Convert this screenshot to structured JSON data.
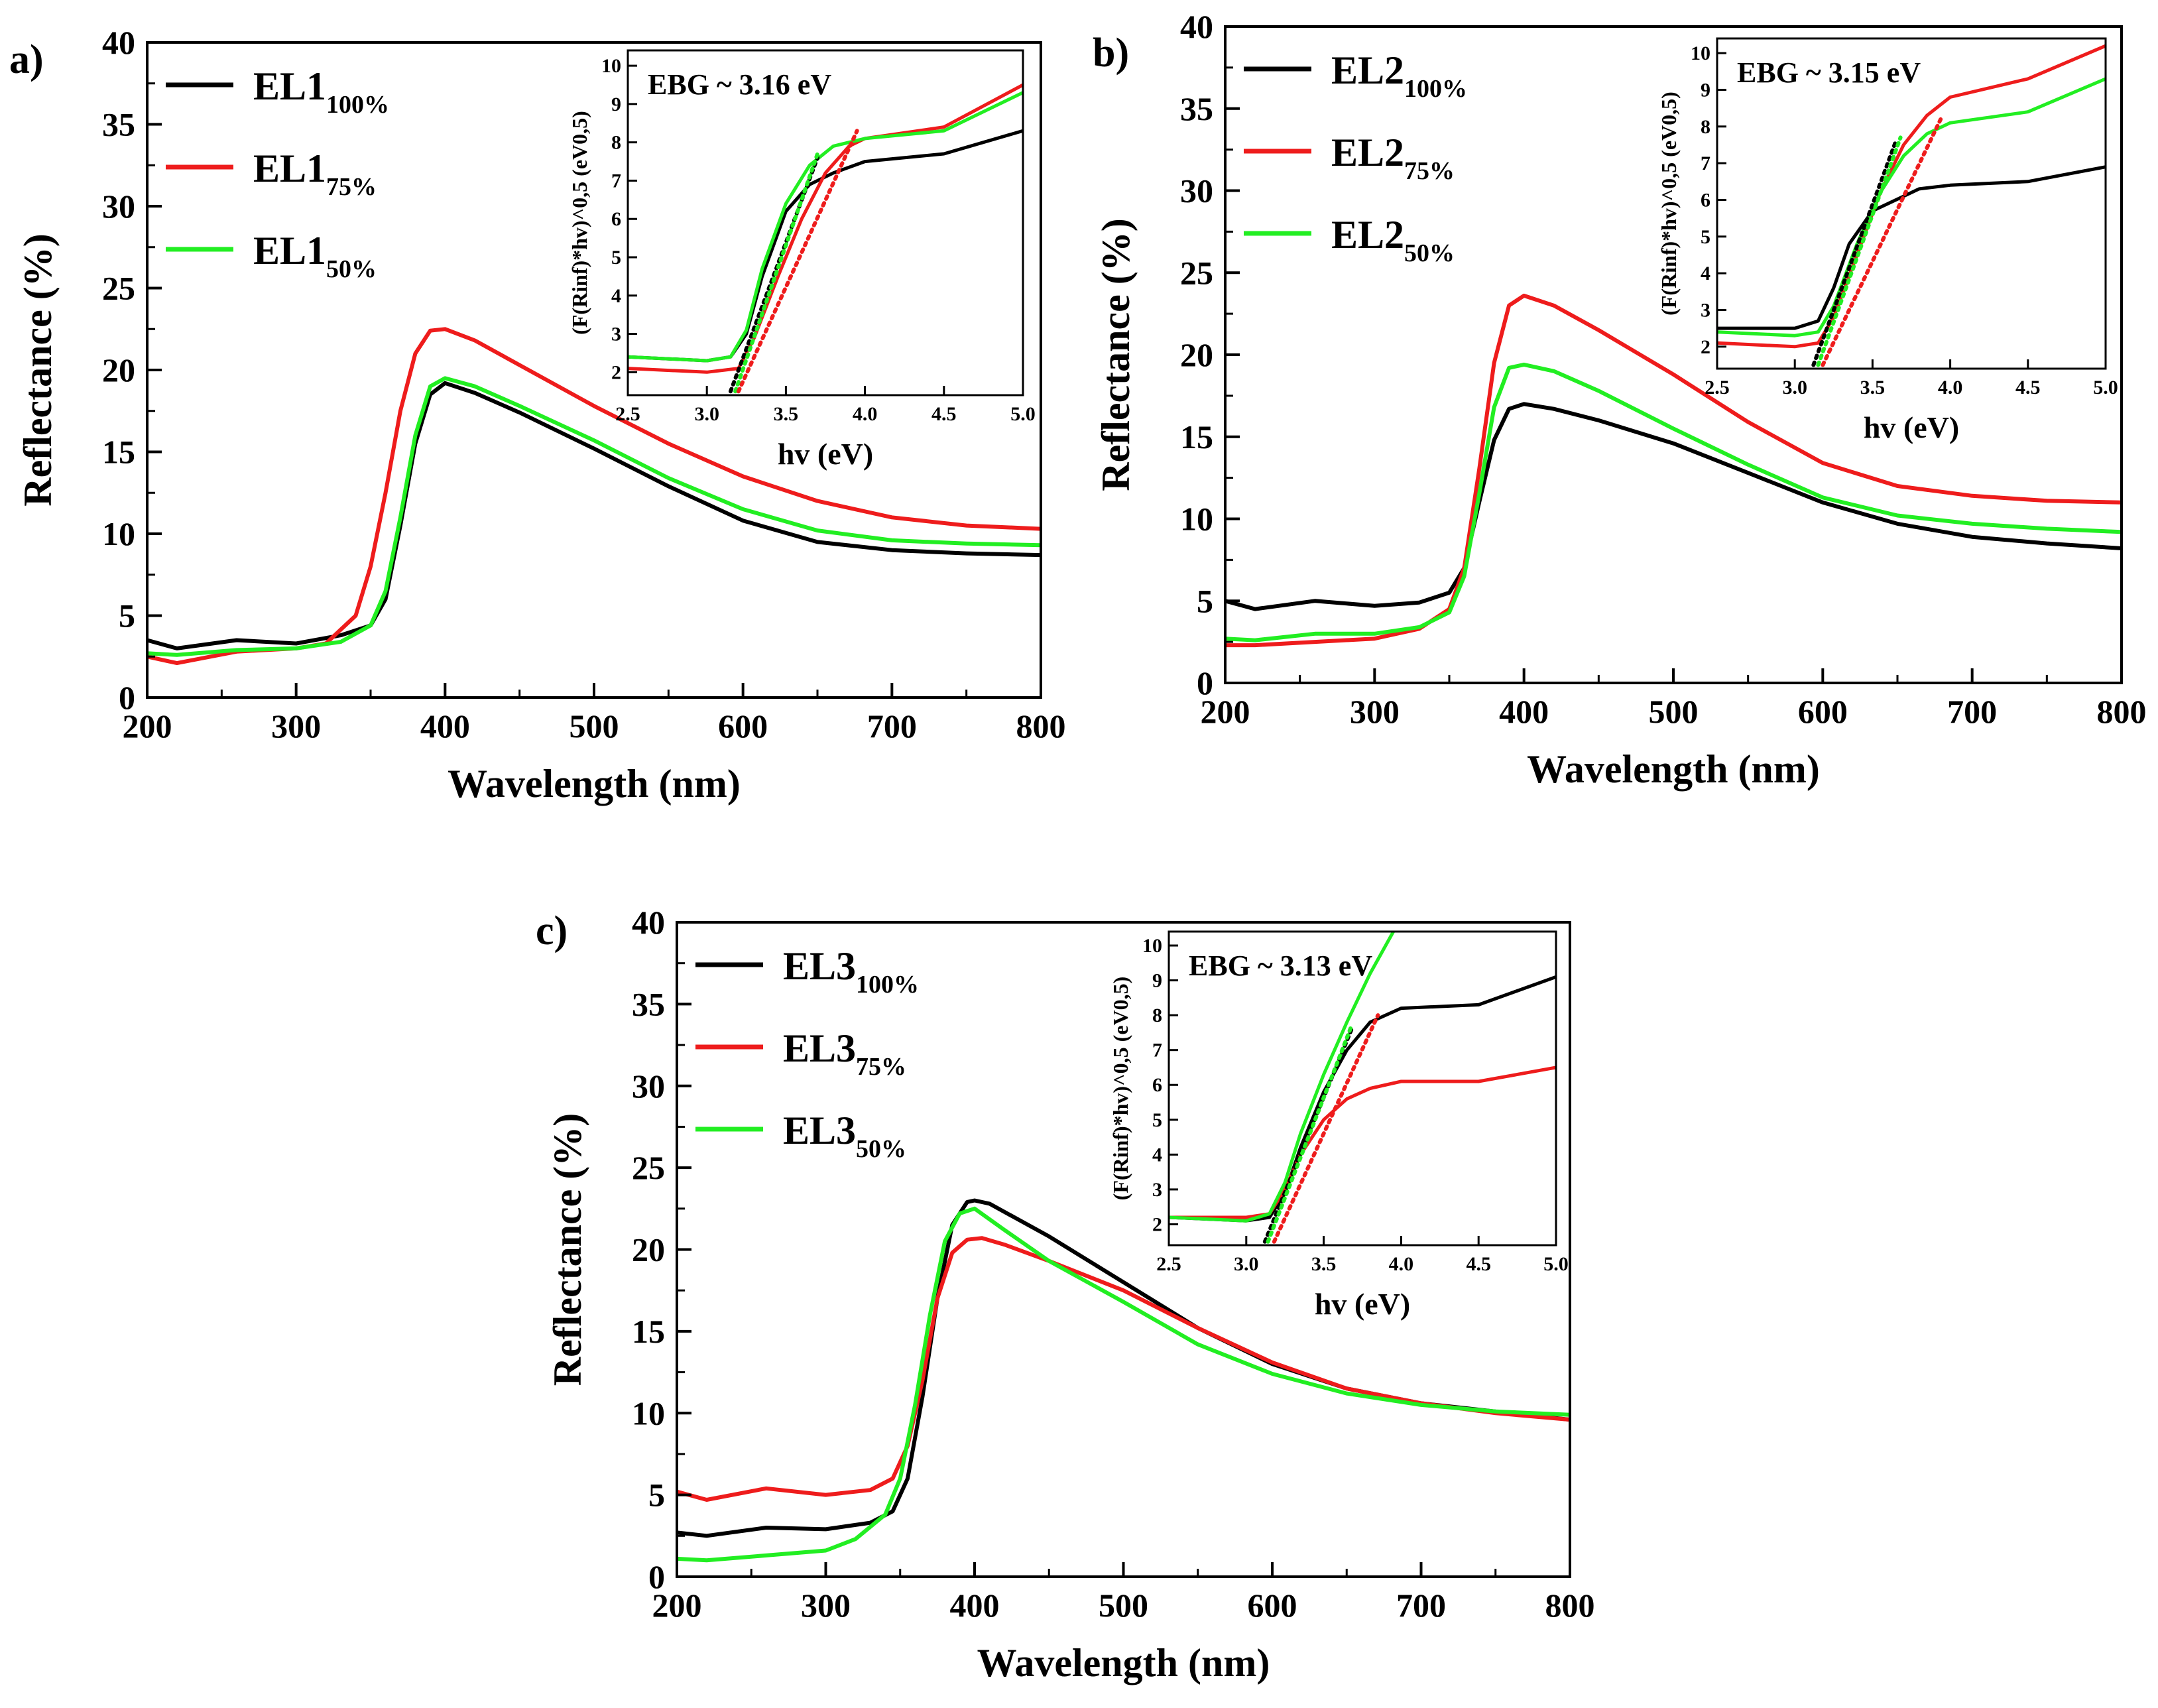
{
  "colors": {
    "black": "#000000",
    "red": "#ee1c1c",
    "green": "#22ee22",
    "axis": "#000000"
  },
  "chart_data": [
    {
      "type": "line",
      "panel_label": "a)",
      "xlabel": "Wavelength (nm)",
      "ylabel": "Reflectance (%)",
      "xlim": [
        200,
        800
      ],
      "ylim": [
        0,
        40
      ],
      "xticks": [
        "200",
        "300",
        "400",
        "500",
        "600",
        "700",
        "800"
      ],
      "yticks": [
        "0",
        "5",
        "10",
        "15",
        "20",
        "25",
        "30",
        "35",
        "40"
      ],
      "legend": {
        "placement": "top-left",
        "entries": [
          {
            "base": "EL1",
            "sub": "100%",
            "color": "black"
          },
          {
            "base": "EL1",
            "sub": "75%",
            "color": "red"
          },
          {
            "base": "EL1",
            "sub": "50%",
            "color": "green"
          }
        ]
      },
      "series": [
        {
          "name": "EL1 100%",
          "color": "black",
          "x": [
            200,
            220,
            260,
            300,
            330,
            350,
            360,
            370,
            380,
            390,
            400,
            420,
            450,
            500,
            550,
            600,
            650,
            700,
            750,
            800
          ],
          "y": [
            3.5,
            3.0,
            3.5,
            3.3,
            3.8,
            4.4,
            6.0,
            10.5,
            15.5,
            18.5,
            19.2,
            18.6,
            17.4,
            15.2,
            12.9,
            10.8,
            9.5,
            9.0,
            8.8,
            8.7
          ]
        },
        {
          "name": "EL1 75%",
          "color": "red",
          "x": [
            200,
            220,
            260,
            300,
            320,
            340,
            350,
            360,
            370,
            380,
            390,
            400,
            420,
            450,
            500,
            550,
            600,
            650,
            700,
            750,
            800
          ],
          "y": [
            2.5,
            2.1,
            2.8,
            3.0,
            3.3,
            5.0,
            8.0,
            12.5,
            17.5,
            21.0,
            22.4,
            22.5,
            21.8,
            20.3,
            17.8,
            15.5,
            13.5,
            12.0,
            11.0,
            10.5,
            10.3
          ]
        },
        {
          "name": "EL1 50%",
          "color": "green",
          "x": [
            200,
            220,
            260,
            300,
            330,
            350,
            360,
            370,
            380,
            390,
            400,
            420,
            450,
            500,
            550,
            600,
            650,
            700,
            750,
            800
          ],
          "y": [
            2.7,
            2.6,
            2.9,
            3.0,
            3.4,
            4.4,
            6.5,
            11.0,
            16.0,
            19.0,
            19.5,
            19.0,
            17.8,
            15.7,
            13.4,
            11.5,
            10.2,
            9.6,
            9.4,
            9.3
          ]
        }
      ],
      "inset": {
        "annotation": "EBG ~ 3.16 eV",
        "xlabel": "hv (eV)",
        "ylabel": "(F(Rinf)*hv)^0,5 (eV0,5)",
        "xlim": [
          2.5,
          5.0
        ],
        "ylim": [
          1.4,
          10.4
        ],
        "xticks": [
          "2.5",
          "3.0",
          "3.5",
          "4.0",
          "4.5",
          "5.0"
        ],
        "yticks": [
          "2",
          "3",
          "4",
          "5",
          "6",
          "7",
          "8",
          "9",
          "10"
        ],
        "series": [
          {
            "color": "black",
            "x": [
              2.5,
              3.0,
              3.15,
              3.25,
              3.35,
              3.5,
              3.65,
              3.8,
              4.0,
              4.5,
              5.0
            ],
            "y": [
              2.4,
              2.3,
              2.4,
              3.0,
              4.5,
              6.2,
              6.9,
              7.2,
              7.5,
              7.7,
              8.3
            ]
          },
          {
            "color": "red",
            "x": [
              2.5,
              3.0,
              3.2,
              3.3,
              3.45,
              3.6,
              3.75,
              3.9,
              4.0,
              4.5,
              5.0
            ],
            "y": [
              2.1,
              2.0,
              2.1,
              2.9,
              4.5,
              6.0,
              7.2,
              7.9,
              8.1,
              8.4,
              9.5
            ]
          },
          {
            "color": "green",
            "x": [
              2.5,
              3.0,
              3.15,
              3.25,
              3.35,
              3.5,
              3.65,
              3.8,
              4.0,
              4.5,
              5.0
            ],
            "y": [
              2.4,
              2.3,
              2.4,
              3.1,
              4.7,
              6.4,
              7.4,
              7.9,
              8.1,
              8.3,
              9.3
            ]
          }
        ],
        "fits": [
          {
            "color": "black",
            "x": [
              3.15,
              3.7
            ],
            "y": [
              1.5,
              7.6
            ]
          },
          {
            "color": "green",
            "x": [
              3.18,
              3.7
            ],
            "y": [
              1.5,
              7.7
            ]
          },
          {
            "color": "red",
            "x": [
              3.2,
              3.95
            ],
            "y": [
              1.5,
              8.3
            ]
          }
        ]
      }
    },
    {
      "type": "line",
      "panel_label": "b)",
      "xlabel": "Wavelength (nm)",
      "ylabel": "Reflectance (%)",
      "xlim": [
        200,
        800
      ],
      "ylim": [
        0,
        40
      ],
      "xticks": [
        "200",
        "300",
        "400",
        "500",
        "600",
        "700",
        "800"
      ],
      "yticks": [
        "0",
        "5",
        "10",
        "15",
        "20",
        "25",
        "30",
        "35",
        "40"
      ],
      "legend": {
        "placement": "top-left",
        "entries": [
          {
            "base": "EL2",
            "sub": "100%",
            "color": "black"
          },
          {
            "base": "EL2",
            "sub": "75%",
            "color": "red"
          },
          {
            "base": "EL2",
            "sub": "50%",
            "color": "green"
          }
        ]
      },
      "series": [
        {
          "name": "EL2 100%",
          "color": "black",
          "x": [
            200,
            220,
            260,
            300,
            330,
            350,
            360,
            370,
            380,
            390,
            400,
            420,
            450,
            500,
            550,
            600,
            650,
            700,
            750,
            800
          ],
          "y": [
            5.0,
            4.5,
            5.0,
            4.7,
            4.9,
            5.5,
            7.0,
            11.0,
            14.8,
            16.7,
            17.0,
            16.7,
            16.0,
            14.6,
            12.8,
            11.0,
            9.7,
            8.9,
            8.5,
            8.2
          ]
        },
        {
          "name": "EL2 75%",
          "color": "red",
          "x": [
            200,
            220,
            260,
            300,
            330,
            350,
            360,
            370,
            380,
            390,
            400,
            420,
            450,
            500,
            550,
            600,
            650,
            700,
            750,
            800
          ],
          "y": [
            2.3,
            2.3,
            2.5,
            2.7,
            3.3,
            4.5,
            7.0,
            13.0,
            19.5,
            23.0,
            23.6,
            23.0,
            21.5,
            18.8,
            15.9,
            13.4,
            12.0,
            11.4,
            11.1,
            11.0
          ]
        },
        {
          "name": "EL2 50%",
          "color": "green",
          "x": [
            200,
            220,
            260,
            300,
            330,
            350,
            360,
            370,
            380,
            390,
            400,
            420,
            450,
            500,
            550,
            600,
            650,
            700,
            750,
            800
          ],
          "y": [
            2.7,
            2.6,
            3.0,
            3.0,
            3.4,
            4.3,
            6.5,
            11.5,
            16.8,
            19.2,
            19.4,
            19.0,
            17.8,
            15.5,
            13.3,
            11.3,
            10.2,
            9.7,
            9.4,
            9.2
          ]
        }
      ],
      "inset": {
        "annotation": "EBG ~ 3.15 eV",
        "xlabel": "hv (eV)",
        "ylabel": "(F(Rinf)*hv)^0,5 (eV0,5)",
        "xlim": [
          2.5,
          5.0
        ],
        "ylim": [
          1.4,
          10.4
        ],
        "xticks": [
          "2.5",
          "3.0",
          "3.5",
          "4.0",
          "4.5",
          "5.0"
        ],
        "yticks": [
          "2",
          "3",
          "4",
          "5",
          "6",
          "7",
          "8",
          "9",
          "10"
        ],
        "series": [
          {
            "color": "black",
            "x": [
              2.5,
              3.0,
              3.15,
              3.25,
              3.35,
              3.5,
              3.65,
              3.8,
              4.0,
              4.5,
              5.0
            ],
            "y": [
              2.5,
              2.5,
              2.7,
              3.6,
              4.8,
              5.7,
              6.0,
              6.3,
              6.4,
              6.5,
              6.9
            ]
          },
          {
            "color": "red",
            "x": [
              2.5,
              3.0,
              3.15,
              3.25,
              3.4,
              3.55,
              3.7,
              3.85,
              4.0,
              4.5,
              5.0
            ],
            "y": [
              2.1,
              2.0,
              2.1,
              2.8,
              4.5,
              6.2,
              7.5,
              8.3,
              8.8,
              9.3,
              10.2
            ]
          },
          {
            "color": "green",
            "x": [
              2.5,
              3.0,
              3.15,
              3.25,
              3.4,
              3.55,
              3.7,
              3.85,
              4.0,
              4.5,
              5.0
            ],
            "y": [
              2.4,
              2.3,
              2.4,
              3.1,
              4.8,
              6.2,
              7.2,
              7.8,
              8.1,
              8.4,
              9.3
            ]
          }
        ],
        "fits": [
          {
            "color": "black",
            "x": [
              3.12,
              3.65
            ],
            "y": [
              1.5,
              7.6
            ]
          },
          {
            "color": "green",
            "x": [
              3.15,
              3.68
            ],
            "y": [
              1.5,
              7.7
            ]
          },
          {
            "color": "red",
            "x": [
              3.18,
              3.95
            ],
            "y": [
              1.5,
              8.3
            ]
          }
        ]
      }
    },
    {
      "type": "line",
      "panel_label": "c)",
      "xlabel": "Wavelength (nm)",
      "ylabel": "Reflectance (%)",
      "xlim": [
        200,
        800
      ],
      "ylim": [
        0,
        40
      ],
      "xticks": [
        "200",
        "300",
        "400",
        "500",
        "600",
        "700",
        "800"
      ],
      "yticks": [
        "0",
        "5",
        "10",
        "15",
        "20",
        "25",
        "30",
        "35",
        "40"
      ],
      "legend": {
        "placement": "top-left",
        "entries": [
          {
            "base": "EL3",
            "sub": "100%",
            "color": "black"
          },
          {
            "base": "EL3",
            "sub": "75%",
            "color": "red"
          },
          {
            "base": "EL3",
            "sub": "50%",
            "color": "green"
          }
        ]
      },
      "series": [
        {
          "name": "EL3 100%",
          "color": "black",
          "x": [
            200,
            220,
            260,
            300,
            330,
            345,
            355,
            365,
            375,
            385,
            395,
            400,
            410,
            450,
            500,
            550,
            600,
            650,
            700,
            750,
            800
          ],
          "y": [
            2.7,
            2.5,
            3.0,
            2.9,
            3.3,
            4.0,
            6.0,
            11.0,
            17.0,
            21.5,
            22.9,
            23.0,
            22.8,
            20.8,
            18.0,
            15.2,
            13.0,
            11.5,
            10.6,
            10.1,
            9.6
          ]
        },
        {
          "name": "EL3 75%",
          "color": "red",
          "x": [
            200,
            220,
            260,
            300,
            330,
            345,
            355,
            365,
            375,
            385,
            395,
            405,
            420,
            450,
            500,
            550,
            600,
            650,
            700,
            750,
            800
          ],
          "y": [
            5.2,
            4.7,
            5.4,
            5.0,
            5.3,
            6.0,
            8.0,
            12.0,
            17.0,
            19.8,
            20.6,
            20.7,
            20.3,
            19.3,
            17.5,
            15.2,
            13.1,
            11.5,
            10.6,
            10.0,
            9.6
          ]
        },
        {
          "name": "EL3 50%",
          "color": "green",
          "x": [
            200,
            220,
            260,
            300,
            320,
            340,
            350,
            360,
            370,
            380,
            390,
            400,
            420,
            450,
            500,
            550,
            600,
            650,
            700,
            750,
            800
          ],
          "y": [
            1.1,
            1.0,
            1.3,
            1.6,
            2.3,
            3.8,
            6.0,
            10.5,
            16.0,
            20.5,
            22.2,
            22.5,
            21.2,
            19.3,
            16.8,
            14.2,
            12.4,
            11.2,
            10.5,
            10.1,
            9.9
          ]
        }
      ],
      "inset": {
        "annotation": "EBG ~ 3.13 eV",
        "xlabel": "hv (eV)",
        "ylabel": "(F(Rinf)*hv)^0,5 (eV0,5)",
        "xlim": [
          2.5,
          5.0
        ],
        "ylim": [
          1.4,
          10.4
        ],
        "xticks": [
          "2.5",
          "3.0",
          "3.5",
          "4.0",
          "4.5",
          "5.0"
        ],
        "yticks": [
          "2",
          "3",
          "4",
          "5",
          "6",
          "7",
          "8",
          "9",
          "10"
        ],
        "series": [
          {
            "color": "black",
            "x": [
              2.5,
              3.0,
              3.15,
              3.25,
              3.35,
              3.5,
              3.65,
              3.8,
              4.0,
              4.5,
              5.0
            ],
            "y": [
              2.2,
              2.1,
              2.2,
              2.9,
              4.2,
              5.8,
              7.0,
              7.8,
              8.2,
              8.3,
              9.1
            ]
          },
          {
            "color": "red",
            "x": [
              2.5,
              3.0,
              3.15,
              3.25,
              3.35,
              3.5,
              3.65,
              3.8,
              4.0,
              4.5,
              5.0
            ],
            "y": [
              2.2,
              2.2,
              2.3,
              3.0,
              4.0,
              5.0,
              5.6,
              5.9,
              6.1,
              6.1,
              6.5
            ]
          },
          {
            "color": "green",
            "x": [
              2.5,
              3.0,
              3.15,
              3.25,
              3.35,
              3.5,
              3.65,
              3.8,
              3.95
            ],
            "y": [
              2.2,
              2.1,
              2.3,
              3.2,
              4.6,
              6.3,
              7.8,
              9.2,
              10.4
            ]
          }
        ],
        "fits": [
          {
            "color": "black",
            "x": [
              3.12,
              3.68
            ],
            "y": [
              1.5,
              7.6
            ]
          },
          {
            "color": "green",
            "x": [
              3.14,
              3.68
            ],
            "y": [
              1.5,
              7.7
            ]
          },
          {
            "color": "red",
            "x": [
              3.18,
              3.85
            ],
            "y": [
              1.5,
              8.0
            ]
          }
        ]
      }
    }
  ]
}
